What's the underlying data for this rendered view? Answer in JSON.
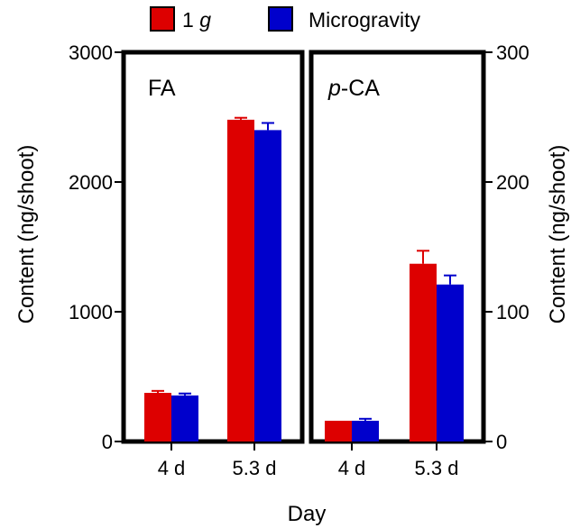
{
  "legend": [
    {
      "label_main": "1 ",
      "label_italic": "g",
      "color": "#dd0000"
    },
    {
      "label_main": "Microgravity",
      "label_italic": "",
      "color": "#0000cc"
    }
  ],
  "chart_data": [
    {
      "type": "bar",
      "panel_label": {
        "prefix_italic": "",
        "text": "FA"
      },
      "categories": [
        "4 d",
        "5.3 d"
      ],
      "series": [
        {
          "name": "1 g",
          "color": "#dd0000",
          "values": [
            375,
            2480
          ],
          "errors": [
            15,
            15
          ]
        },
        {
          "name": "Microgravity",
          "color": "#0000cc",
          "values": [
            355,
            2400
          ],
          "errors": [
            15,
            55
          ]
        }
      ],
      "ylabel": "Content (ng/shoot)",
      "ylim": [
        0,
        3000
      ],
      "yticks": [
        "0",
        "1000",
        "2000",
        "3000"
      ],
      "y_axis_side": "left",
      "grid": false
    },
    {
      "type": "bar",
      "panel_label": {
        "prefix_italic": "p",
        "text": "-CA"
      },
      "categories": [
        "4 d",
        "5.3 d"
      ],
      "series": [
        {
          "name": "1 g",
          "color": "#dd0000",
          "values": [
            16,
            137
          ],
          "errors": [
            0,
            10
          ]
        },
        {
          "name": "Microgravity",
          "color": "#0000cc",
          "values": [
            16,
            121
          ],
          "errors": [
            1.5,
            7
          ]
        }
      ],
      "ylabel": "Content (ng/shoot)",
      "ylim": [
        0,
        300
      ],
      "yticks": [
        "0",
        "100",
        "200",
        "300"
      ],
      "y_axis_side": "right",
      "grid": false
    }
  ],
  "xlabel": "Day"
}
